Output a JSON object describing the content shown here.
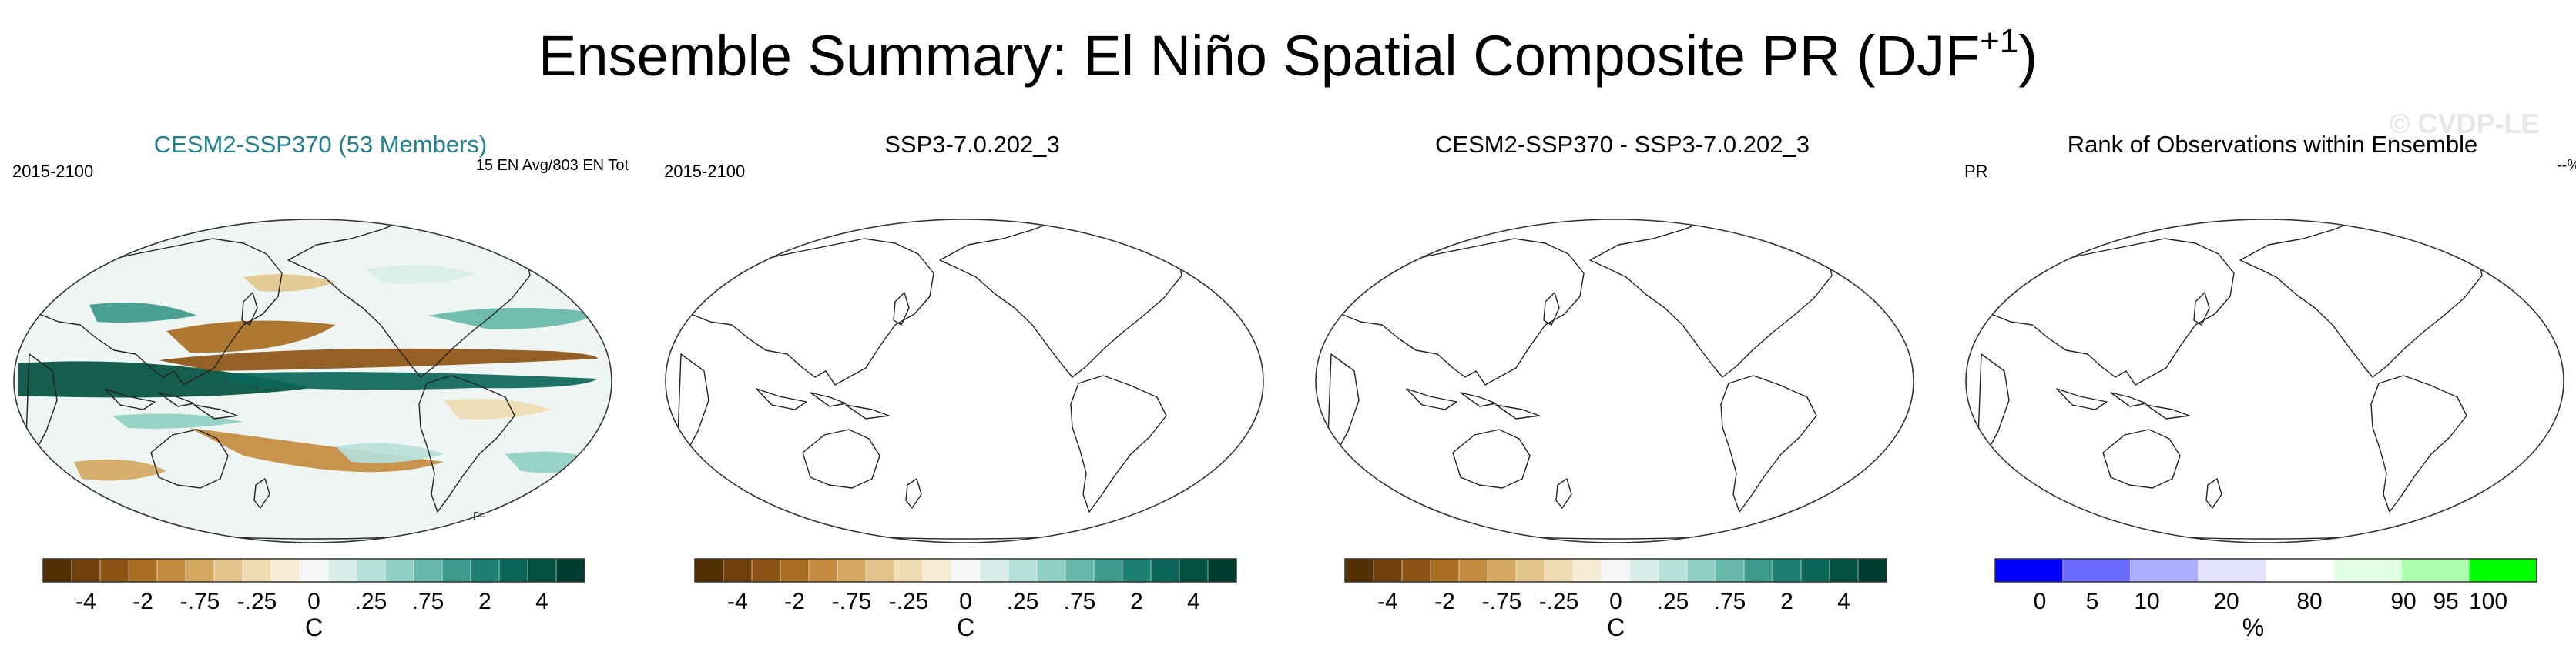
{
  "figure": {
    "title_main": "Ensemble Summary: El Niño Spatial Composite PR (DJF",
    "title_sup": "+1",
    "title_close": ")",
    "watermark": "© CVDP-LE"
  },
  "panels": [
    {
      "title": "CESM2-SSP370 (53 Members)",
      "left_label": "2015-2100",
      "right_label": "15 EN Avg/803 EN Tot",
      "bottom_label": "r=",
      "units": "C",
      "filled": true
    },
    {
      "title": "SSP3-7.0.202_3",
      "left_label": "2015-2100",
      "right_label": "",
      "units": "C",
      "filled": false
    },
    {
      "title": "CESM2-SSP370 - SSP3-7.0.202_3",
      "left_label": "",
      "right_label": "",
      "units": "C",
      "filled": false
    },
    {
      "title": "Rank of Observations within Ensemble",
      "left_label": "PR",
      "right_label": "--%",
      "units": "%",
      "filled": false
    }
  ],
  "chart_data": [
    {
      "type": "heatmap",
      "title": "CESM2-SSP370 (53 Members)",
      "period": "2015-2100",
      "note": "15 EN Avg/803 EN Tot",
      "colorbar": {
        "ticks": [
          "-4",
          "-2",
          "-.75",
          "-.25",
          "0",
          ".25",
          ".75",
          "2",
          "4"
        ],
        "units": "C",
        "colors": [
          "#543005",
          "#6f400b",
          "#8c5213",
          "#a96d22",
          "#c48a3f",
          "#d5a862",
          "#e3c58c",
          "#efdcb3",
          "#f5ecd3",
          "#f4f6f5",
          "#d8ede9",
          "#b6e0d9",
          "#90cfc3",
          "#66b7aa",
          "#3d9a8c",
          "#1d7f71",
          "#0b6659",
          "#02503f",
          "#003c30"
        ]
      }
    },
    {
      "type": "heatmap",
      "title": "SSP3-7.0.202_3",
      "period": "2015-2100",
      "colorbar": {
        "ticks": [
          "-4",
          "-2",
          "-.75",
          "-.25",
          "0",
          ".25",
          ".75",
          "2",
          "4"
        ],
        "units": "C",
        "colors": [
          "#543005",
          "#6f400b",
          "#8c5213",
          "#a96d22",
          "#c48a3f",
          "#d5a862",
          "#e3c58c",
          "#efdcb3",
          "#f5ecd3",
          "#f4f6f5",
          "#d8ede9",
          "#b6e0d9",
          "#90cfc3",
          "#66b7aa",
          "#3d9a8c",
          "#1d7f71",
          "#0b6659",
          "#02503f",
          "#003c30"
        ]
      }
    },
    {
      "type": "heatmap",
      "title": "CESM2-SSP370 - SSP3-7.0.202_3",
      "colorbar": {
        "ticks": [
          "-4",
          "-2",
          "-.75",
          "-.25",
          "0",
          ".25",
          ".75",
          "2",
          "4"
        ],
        "units": "C",
        "colors": [
          "#543005",
          "#6f400b",
          "#8c5213",
          "#a96d22",
          "#c48a3f",
          "#d5a862",
          "#e3c58c",
          "#efdcb3",
          "#f5ecd3",
          "#f4f6f5",
          "#d8ede9",
          "#b6e0d9",
          "#90cfc3",
          "#66b7aa",
          "#3d9a8c",
          "#1d7f71",
          "#0b6659",
          "#02503f",
          "#003c30"
        ]
      }
    },
    {
      "type": "heatmap",
      "title": "Rank of Observations within Ensemble",
      "variable": "PR",
      "value_label": "--%",
      "colorbar": {
        "ticks": [
          "0",
          "5",
          "10",
          "20",
          "80",
          "90",
          "95",
          "100"
        ],
        "units": "%",
        "boundaries": [
          0,
          5,
          10,
          20,
          80,
          90,
          95,
          100
        ],
        "colors": [
          "#0000ff",
          "#6b6bff",
          "#adadff",
          "#e3e3ff",
          "#ffffff",
          "#e3ffe3",
          "#adffad",
          "#00ff00"
        ]
      }
    }
  ]
}
